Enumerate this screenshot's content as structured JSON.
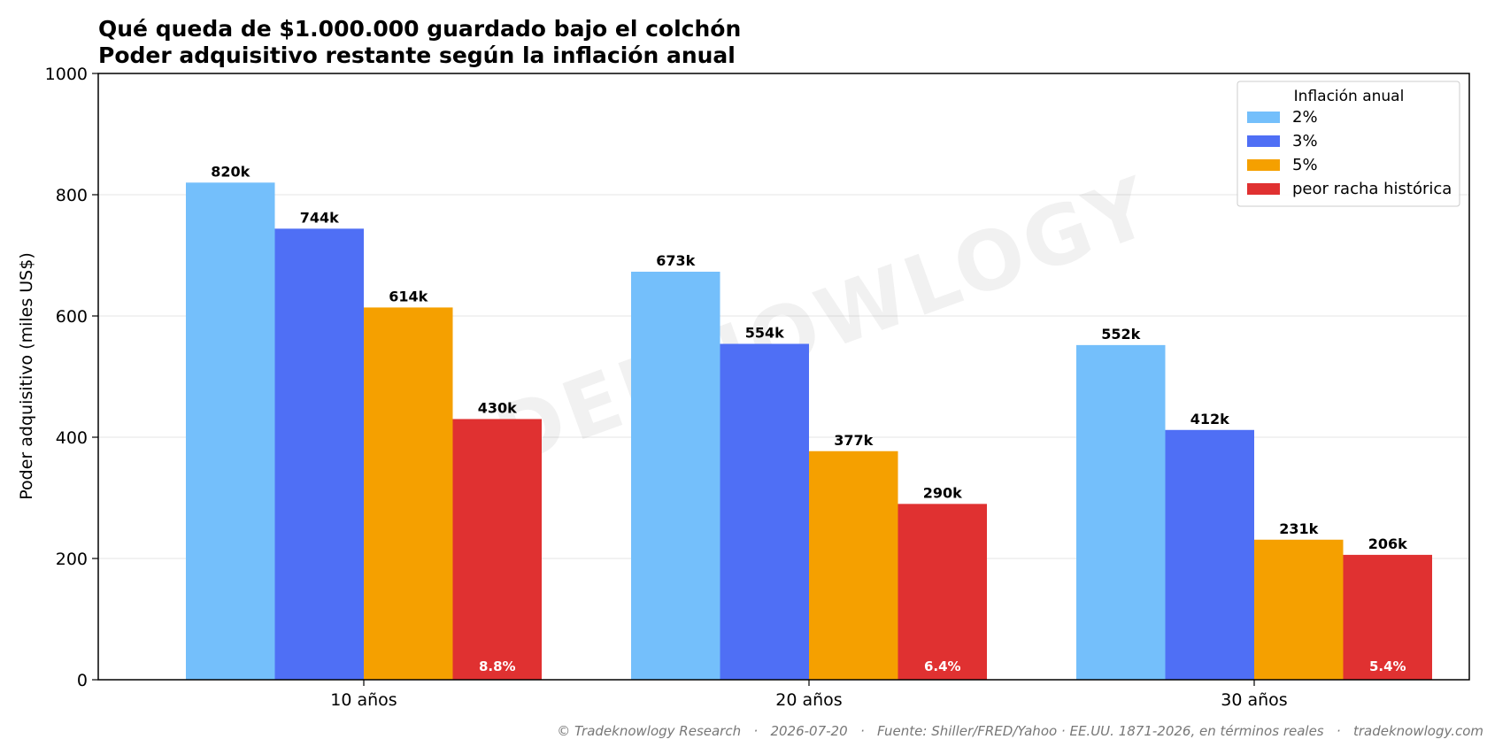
{
  "chart_data": {
    "type": "bar",
    "title": "Qué queda de $1.000.000 guardado bajo el colchón",
    "subtitle": "Poder adquisitivo restante según la inflación anual",
    "xlabel": "",
    "ylabel": "Poder adquisitivo (miles US$)",
    "ylim": [
      0,
      1000
    ],
    "yticks": [
      0,
      200,
      400,
      600,
      800,
      1000
    ],
    "grid": "horizontal",
    "categories": [
      "10 años",
      "20 años",
      "30 años"
    ],
    "series": [
      {
        "name": "2%",
        "color": "#74bffb",
        "values": [
          820,
          673,
          552
        ],
        "labels": [
          "820k",
          "673k",
          "552k"
        ]
      },
      {
        "name": "3%",
        "color": "#4f6ff5",
        "values": [
          744,
          554,
          412
        ],
        "labels": [
          "744k",
          "554k",
          "412k"
        ]
      },
      {
        "name": "5%",
        "color": "#f5a000",
        "values": [
          614,
          377,
          231
        ],
        "labels": [
          "614k",
          "377k",
          "231k"
        ]
      },
      {
        "name": "peor racha histórica",
        "color": "#e03131",
        "values": [
          430,
          290,
          206
        ],
        "labels": [
          "430k",
          "290k",
          "206k"
        ],
        "inner_labels": [
          "8.8%",
          "6.4%",
          "5.4%"
        ]
      }
    ],
    "legend": {
      "title": "Inflación anual",
      "position": "top-right"
    }
  },
  "watermark": "TRADEKNOWLOGY",
  "footer": "© Tradeknowlogy Research   ·   2026-07-20   ·   Fuente: Shiller/FRED/Yahoo · EE.UU. 1871-2026, en términos reales   ·   tradeknowlogy.com"
}
